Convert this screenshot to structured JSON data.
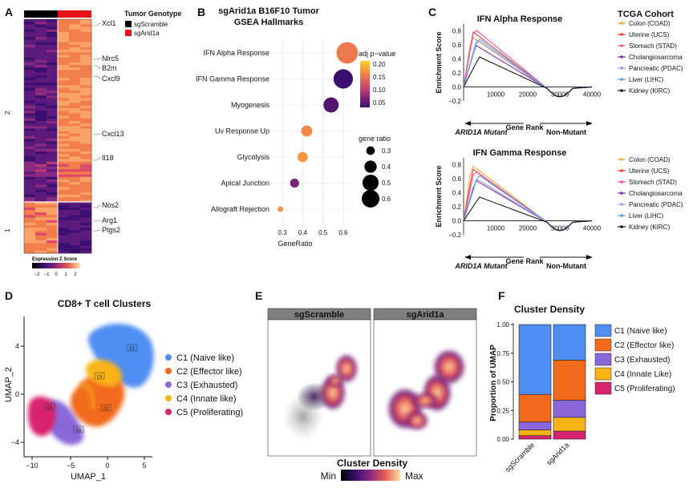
{
  "panels": {
    "A": {
      "letter": "A",
      "legend_title": "Tumor Genotype",
      "genotypes": [
        {
          "name": "sgScramble",
          "color": "#000000"
        },
        {
          "name": "sgArid1a",
          "color": "#e8141b"
        }
      ],
      "row_clusters": [
        "2",
        "1"
      ],
      "genes": [
        "Xcl1",
        "Nlrc5",
        "B2m",
        "Cxcl9",
        "Cxcl13",
        "Il18",
        "Nos2",
        "Arg1",
        "Ptgs2"
      ],
      "colorbar_title": "Expression Z Score",
      "colorbar_ticks": [
        "−2",
        "−1",
        "0",
        "1",
        "2"
      ]
    },
    "B": {
      "letter": "B",
      "title_line1": "sgArid1a B16F10 Tumor",
      "title_line2": "GSEA Hallmarks",
      "chart_data": {
        "type": "scatter",
        "title": "sgArid1a B16F10 Tumor GSEA Hallmarks",
        "xlabel": "GeneRatio",
        "xticks": [
          "0.3",
          "0.4",
          "0.5",
          "0.6"
        ],
        "xlim": [
          0.26,
          0.64
        ],
        "categories": [
          "IFN Alpha Response",
          "IFN Gamma Response",
          "Myogenesis",
          "Uv Response Up",
          "Glycolysis",
          "Apical Junction",
          "Allograft Rejection"
        ],
        "gene_ratio": [
          0.62,
          0.6,
          0.54,
          0.42,
          0.4,
          0.36,
          0.29
        ],
        "adj_pvalue": [
          0.14,
          0.03,
          0.04,
          0.15,
          0.16,
          0.06,
          0.16
        ],
        "size_ratio": [
          0.6,
          0.55,
          0.45,
          0.35,
          0.33,
          0.3,
          0.22
        ],
        "color_legend_title": "adj p−value",
        "color_ticks": [
          "0.20",
          "0.15",
          "0.10",
          "0.05"
        ],
        "size_legend_title": "gene ratio",
        "size_ticks": [
          "0.3",
          "0.4",
          "0.5",
          "0.6"
        ]
      }
    },
    "C": {
      "letter": "C",
      "legend_title": "TCGA Cohort",
      "cohorts": [
        {
          "name": "Colon (COAD)",
          "color": "#f4a534"
        },
        {
          "name": "Uterine (UCS)",
          "color": "#ee3a2f"
        },
        {
          "name": "Stomach (STAD)",
          "color": "#ee4fa3"
        },
        {
          "name": "Cholangiosarcoma",
          "color": "#7a2c9e"
        },
        {
          "name": "Pancreatic (PDAC)",
          "color": "#a595df"
        },
        {
          "name": "Liver (LIHC)",
          "color": "#4aa3ea"
        },
        {
          "name": "Kidney (KIRC)",
          "color": "#111111"
        }
      ],
      "plots": [
        {
          "title": "IFN Alpha Response",
          "ylabel": "Enrichment Score",
          "xlabel": "Gene Rank",
          "yticks": [
            "0.8",
            "0.6",
            "0.4",
            "0.2",
            "0.0",
            "−0.2"
          ],
          "xticks": [
            "10000",
            "20000",
            "30000",
            "40000"
          ],
          "mutant_label": "ARID1A Mutant",
          "nonmutant_label": "Non-Mutant",
          "peaks": [
            0.72,
            0.79,
            0.84,
            0.6,
            0.68,
            0.7,
            0.43
          ]
        },
        {
          "title": "IFN Gamma Response",
          "ylabel": "Enrichment Score",
          "xlabel": "Gene Rank",
          "yticks": [
            "0.8",
            "0.6",
            "0.4",
            "0.2",
            "0.0",
            "−0.2"
          ],
          "xticks": [
            "10000",
            "20000",
            "30000",
            "40000"
          ],
          "mutant_label": "ARID1A Mutant",
          "nonmutant_label": "Non-Mutant",
          "peaks": [
            0.8,
            0.74,
            0.72,
            0.58,
            0.6,
            0.66,
            0.34
          ]
        }
      ]
    },
    "D": {
      "letter": "D",
      "title": "CD8+ T cell Clusters",
      "xlabel": "UMAP_1",
      "ylabel": "UMAP_2",
      "xticks": [
        "−10",
        "−5",
        "0",
        "5"
      ],
      "yticks": [
        "4",
        "0",
        "−4"
      ],
      "cluster_tags": [
        "C1",
        "C2",
        "C3",
        "C4",
        "C5"
      ],
      "clusters": [
        {
          "label": "C1 (Naive like)",
          "color": "#4f8ef2"
        },
        {
          "label": "C2 (Effector like)",
          "color": "#f26b1d"
        },
        {
          "label": "C3 (Exhausted)",
          "color": "#8a67d8"
        },
        {
          "label": "C4 (Innate like)",
          "color": "#f8b417"
        },
        {
          "label": "C5 (Proliferating)",
          "color": "#d8236e"
        }
      ]
    },
    "E": {
      "letter": "E",
      "facets": [
        "sgScramble",
        "sgArid1a"
      ],
      "colorbar_title": "Cluster Density",
      "min_label": "Min",
      "max_label": "Max"
    },
    "F": {
      "letter": "F",
      "chart_data": {
        "type": "bar",
        "stacked": true,
        "title": "Cluster Density",
        "ylabel": "Proportion of UMAP",
        "categories": [
          "sgScramble",
          "sgArid1a"
        ],
        "yticks": [
          "0.00",
          "0.25",
          "0.50",
          "0.75",
          "1.00"
        ],
        "ylim": [
          0,
          1
        ],
        "series": [
          {
            "name": "C5 (Proliferating)",
            "color": "#d8236e",
            "values": [
              0.03,
              0.07
            ]
          },
          {
            "name": "C4 (Innate Like)",
            "color": "#f8b417",
            "values": [
              0.05,
              0.12
            ]
          },
          {
            "name": "C3 (Exhausted)",
            "color": "#8a67d8",
            "values": [
              0.07,
              0.15
            ]
          },
          {
            "name": "C2 (Effector like)",
            "color": "#f26b1d",
            "values": [
              0.24,
              0.35
            ]
          },
          {
            "name": "C1 (Naive like)",
            "color": "#4f8ef2",
            "values": [
              0.61,
              0.31
            ]
          }
        ],
        "legend_order": [
          "C1 (Naive like)",
          "C2 (Effector like)",
          "C3 (Exhausted)",
          "C4 (Innate Like)",
          "C5 (Proliferating)"
        ]
      }
    }
  }
}
